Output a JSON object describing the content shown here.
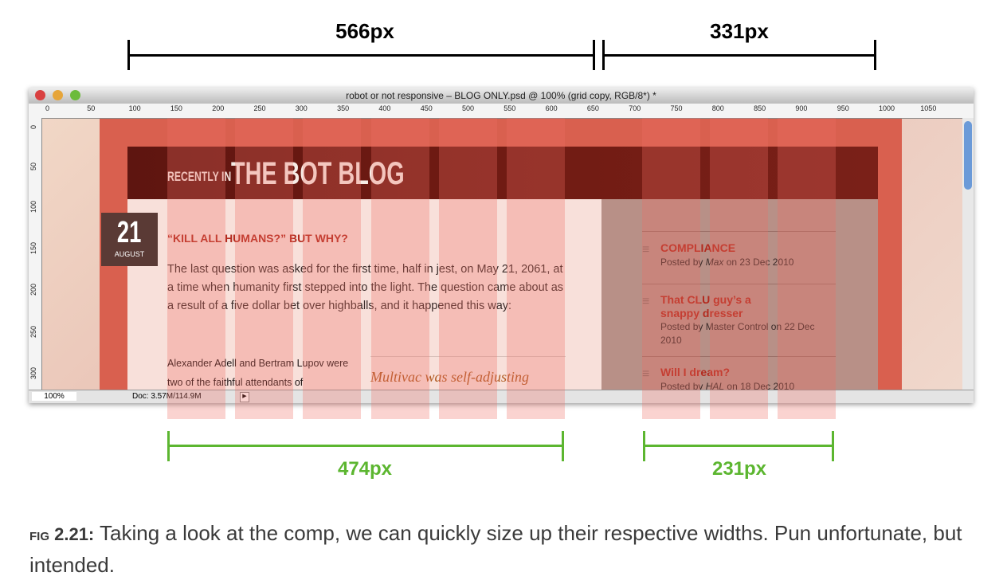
{
  "dimensions": {
    "top": [
      "566px",
      "331px"
    ],
    "bottom": [
      "474px",
      "231px"
    ]
  },
  "window": {
    "title": "robot or not responsive – BLOG ONLY.psd @ 100% (grid copy, RGB/8*) *",
    "ruler_top": [
      0,
      50,
      100,
      150,
      200,
      250,
      300,
      350,
      400,
      450,
      500,
      550,
      600,
      650,
      700,
      750,
      800,
      850,
      900,
      950,
      1000,
      1050
    ],
    "ruler_left": [
      0,
      50,
      100,
      150,
      200,
      250,
      300
    ],
    "zoom": "100%",
    "doc": "Doc: 3.57M/114.9M"
  },
  "blog": {
    "kicker": "RECENTLY IN",
    "title": "THE BOT BLOG",
    "day": "21",
    "month": "AUGUST",
    "post_title": "“KILL ALL HUMANS?” BUT WHY?",
    "paragraph": "The last question was asked for the first time, half in jest, on May 21, 2061, at a time when humanity first stepped into the light. The question came about as a result of a five dollar bet over highballs, and it happened this way:",
    "paragraph2": "Alexander Adell and Bertram Lupov were two of the faithful attendants of",
    "pullquote": "Multivac was self-adjusting"
  },
  "sidebar": [
    {
      "title": "COMPLIANCE",
      "prefix": "Posted by",
      "author": "Max",
      "suffix": "on 23 Dec 2010",
      "author_italic": true
    },
    {
      "title": "That CLU guy’s a snappy dresser",
      "prefix": "Posted by",
      "author": "Master Control",
      "suffix": "on 22 Dec 2010",
      "author_italic": false
    },
    {
      "title": "Will I dream?",
      "prefix": "Posted by",
      "author": "HAL",
      "suffix": "on 18 Dec 2010",
      "author_italic": true
    }
  ],
  "caption": {
    "label": "FIG 2.21:",
    "text": "Taking a look at the comp, we can quickly size up their respective widths. Pun unfortunate, but intended."
  }
}
